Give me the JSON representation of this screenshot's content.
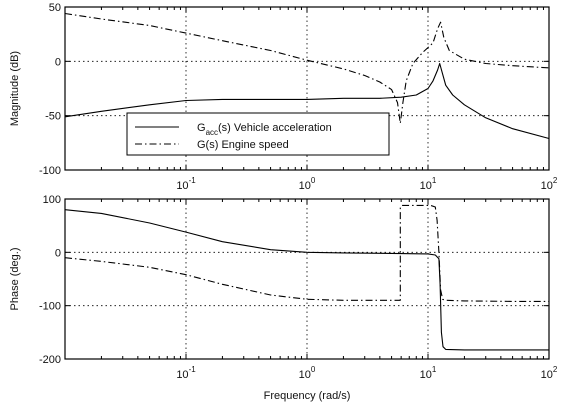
{
  "chart_data": [
    {
      "type": "line",
      "title": "",
      "xlabel": "",
      "ylabel": "Magnitude (dB)",
      "xscale": "log",
      "xlim": [
        0.01,
        100
      ],
      "ylim": [
        -100,
        50
      ],
      "grid": true,
      "xticks": [
        {
          "value": 0.1,
          "base": "10",
          "exp": "-1"
        },
        {
          "value": 1,
          "base": "10",
          "exp": "0"
        },
        {
          "value": 10,
          "base": "10",
          "exp": "1"
        },
        {
          "value": 100,
          "base": "10",
          "exp": "2"
        }
      ],
      "yticks": [
        {
          "value": 50,
          "label": "50"
        },
        {
          "value": 0,
          "label": "0"
        },
        {
          "value": -50,
          "label": "-50"
        },
        {
          "value": -100,
          "label": "-100"
        }
      ],
      "legend": {
        "placement": "lower-left",
        "entries": [
          {
            "main": "G",
            "sub": "acc",
            "rest": "(s) Vehicle acceleration",
            "style": "solid"
          },
          {
            "main": "G(s) Engine speed",
            "sub": "",
            "rest": "",
            "style": "dashdot"
          }
        ]
      },
      "series": [
        {
          "style": "solid",
          "x": [
            0.01,
            0.02,
            0.05,
            0.1,
            0.2,
            0.5,
            1,
            2,
            4,
            6,
            8,
            10,
            11,
            12,
            12.5,
            13,
            14,
            16,
            20,
            30,
            50,
            100
          ],
          "y": [
            -51,
            -46,
            -40,
            -36,
            -35,
            -35,
            -35,
            -34,
            -34,
            -33,
            -31,
            -25,
            -18,
            -8,
            -2,
            -9,
            -22,
            -31,
            -40,
            -52,
            -62,
            -71
          ]
        },
        {
          "style": "dashdot",
          "x": [
            0.01,
            0.02,
            0.05,
            0.1,
            0.2,
            0.5,
            1,
            2,
            3,
            4,
            5,
            5.6,
            5.9,
            6.2,
            6.6,
            7.5,
            9,
            11,
            12,
            12.7,
            13.5,
            15,
            20,
            30,
            50,
            100
          ],
          "y": [
            44,
            39,
            33,
            26,
            19,
            10,
            1,
            -7,
            -13,
            -19,
            -26,
            -38,
            -57,
            -38,
            -18,
            -2,
            8,
            17,
            30,
            36,
            22,
            10,
            2,
            -2,
            -4,
            -6
          ]
        }
      ]
    },
    {
      "type": "line",
      "title": "",
      "xlabel": "Frequency (rad/s)",
      "ylabel": "Phase (deg.)",
      "xscale": "log",
      "xlim": [
        0.01,
        100
      ],
      "ylim": [
        -200,
        100
      ],
      "grid": true,
      "xticks": [
        {
          "value": 0.1,
          "base": "10",
          "exp": "-1"
        },
        {
          "value": 1,
          "base": "10",
          "exp": "0"
        },
        {
          "value": 10,
          "base": "10",
          "exp": "1"
        },
        {
          "value": 100,
          "base": "10",
          "exp": "2"
        }
      ],
      "yticks": [
        {
          "value": 100,
          "label": "100"
        },
        {
          "value": 0,
          "label": "0"
        },
        {
          "value": -100,
          "label": "-100"
        },
        {
          "value": -200,
          "label": "-200"
        }
      ],
      "series": [
        {
          "style": "solid",
          "x": [
            0.01,
            0.02,
            0.05,
            0.1,
            0.2,
            0.5,
            1,
            2,
            5,
            10,
            11.5,
            12.3,
            12.6,
            12.9,
            13.3,
            14,
            20,
            50,
            100
          ],
          "y": [
            80,
            73,
            55,
            38,
            20,
            5,
            0,
            -1,
            -2,
            -3,
            -5,
            -12,
            -60,
            -150,
            -177,
            -182,
            -183,
            -183,
            -183
          ]
        },
        {
          "style": "dashdot",
          "x": [
            0.01,
            0.02,
            0.05,
            0.1,
            0.2,
            0.5,
            1,
            2,
            4,
            5.9,
            5.9,
            6.1,
            10.5,
            11.5,
            11.9,
            12.3,
            12.7,
            13.2,
            14,
            20,
            50,
            100
          ],
          "y": [
            -10,
            -17,
            -28,
            -42,
            -60,
            -80,
            -88,
            -90,
            -90,
            -90,
            85,
            88,
            88,
            85,
            60,
            0,
            -70,
            -88,
            -90,
            -91,
            -92,
            -92
          ]
        }
      ]
    }
  ]
}
